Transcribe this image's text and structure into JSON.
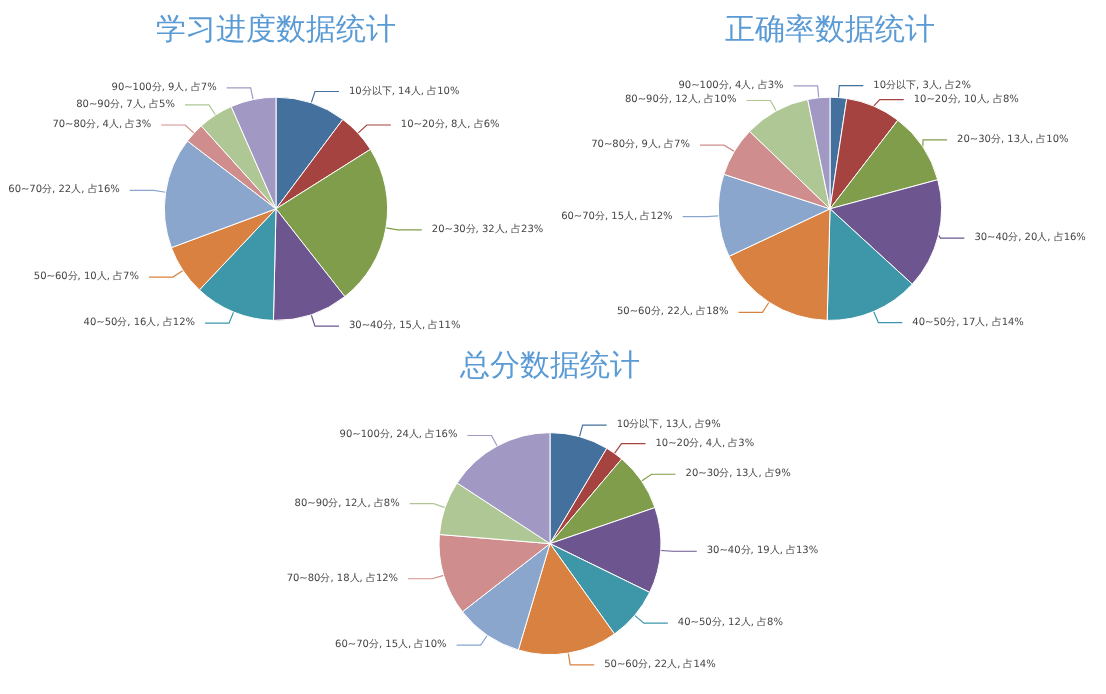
{
  "chart_data": [
    {
      "type": "pie",
      "title": "学习进度数据统计",
      "categories": [
        "10分以下",
        "10~20分",
        "20~30分",
        "30~40分",
        "40~50分",
        "50~60分",
        "60~70分",
        "70~80分",
        "80~90分",
        "90~100分"
      ],
      "values": [
        14,
        8,
        32,
        15,
        16,
        10,
        22,
        4,
        7,
        9
      ],
      "value_labels": [
        ", 14人, 占10%",
        ", 8人, 占6%",
        ", 32人, 占23%",
        ", 15人, 占11%",
        ", 16人, 占12%",
        ", 10人, 占7%",
        ", 22人, 占16%",
        ", 4人, 占3%",
        ", 7人, 占5%",
        ", 9人, 占7%"
      ],
      "colors": [
        "#44709d",
        "#a4433f",
        "#7f9d4a",
        "#6d5690",
        "#3d97a8",
        "#d98140",
        "#8ba6cd",
        "#cf8e8d",
        "#aec794",
        "#a199c3"
      ],
      "legend": false
    },
    {
      "type": "pie",
      "title": "正确率数据统计",
      "categories": [
        "10分以下",
        "10~20分",
        "20~30分",
        "30~40分",
        "40~50分",
        "50~60分",
        "60~70分",
        "70~80分",
        "80~90分",
        "90~100分"
      ],
      "values": [
        3,
        10,
        13,
        20,
        17,
        22,
        15,
        9,
        12,
        4
      ],
      "value_labels": [
        ", 3人, 占2%",
        ", 10人, 占8%",
        ", 13人, 占10%",
        ", 20人, 占16%",
        ", 17人, 占14%",
        ", 22人, 占18%",
        ", 15人, 占12%",
        ", 9人, 占7%",
        ", 12人, 占10%",
        ", 4人, 占3%"
      ],
      "colors": [
        "#44709d",
        "#a4433f",
        "#7f9d4a",
        "#6d5690",
        "#3d97a8",
        "#d98140",
        "#8ba6cd",
        "#cf8e8d",
        "#aec794",
        "#a199c3"
      ],
      "legend": false
    },
    {
      "type": "pie",
      "title": "总分数据统计",
      "categories": [
        "10分以下",
        "10~20分",
        "20~30分",
        "30~40分",
        "40~50分",
        "50~60分",
        "60~70分",
        "70~80分",
        "80~90分",
        "90~100分"
      ],
      "values": [
        13,
        4,
        13,
        19,
        12,
        22,
        15,
        18,
        12,
        24
      ],
      "value_labels": [
        ", 13人, 占9%",
        ", 4人, 占3%",
        ", 13人, 占9%",
        ", 19人, 占13%",
        ", 12人, 占8%",
        ", 22人, 占14%",
        ", 15人, 占10%",
        ", 18人, 占12%",
        ", 12人, 占8%",
        ", 24人, 占16%"
      ],
      "colors": [
        "#44709d",
        "#a4433f",
        "#7f9d4a",
        "#6d5690",
        "#3d97a8",
        "#d98140",
        "#8ba6cd",
        "#cf8e8d",
        "#aec794",
        "#a199c3"
      ],
      "legend": false
    }
  ]
}
